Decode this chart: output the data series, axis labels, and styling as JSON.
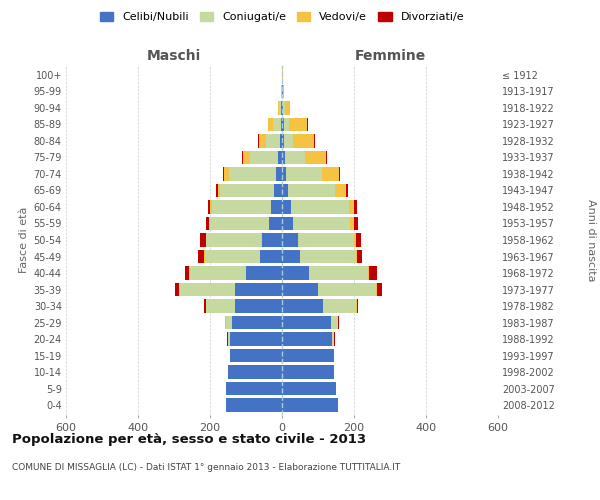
{
  "age_groups": [
    "0-4",
    "5-9",
    "10-14",
    "15-19",
    "20-24",
    "25-29",
    "30-34",
    "35-39",
    "40-44",
    "45-49",
    "50-54",
    "55-59",
    "60-64",
    "65-69",
    "70-74",
    "75-79",
    "80-84",
    "85-89",
    "90-94",
    "95-99",
    "100+"
  ],
  "birth_years": [
    "2008-2012",
    "2003-2007",
    "1998-2002",
    "1993-1997",
    "1988-1992",
    "1983-1987",
    "1978-1982",
    "1973-1977",
    "1968-1972",
    "1963-1967",
    "1958-1962",
    "1953-1957",
    "1948-1952",
    "1943-1947",
    "1938-1942",
    "1933-1937",
    "1928-1932",
    "1923-1927",
    "1918-1922",
    "1913-1917",
    "≤ 1912"
  ],
  "males": {
    "celibi": [
      155,
      155,
      150,
      145,
      145,
      140,
      130,
      130,
      100,
      60,
      55,
      35,
      30,
      22,
      18,
      10,
      5,
      4,
      2,
      1,
      1
    ],
    "coniugati": [
      0,
      0,
      0,
      0,
      5,
      15,
      80,
      155,
      155,
      155,
      155,
      165,
      165,
      150,
      130,
      80,
      40,
      20,
      5,
      1,
      0
    ],
    "vedovi": [
      0,
      0,
      0,
      0,
      1,
      2,
      2,
      2,
      2,
      2,
      2,
      4,
      4,
      5,
      12,
      18,
      20,
      15,
      3,
      1,
      0
    ],
    "divorziati": [
      0,
      0,
      0,
      0,
      1,
      2,
      4,
      10,
      12,
      15,
      15,
      6,
      6,
      5,
      5,
      2,
      2,
      0,
      0,
      0,
      0
    ]
  },
  "females": {
    "nubili": [
      155,
      150,
      145,
      145,
      140,
      135,
      115,
      100,
      75,
      50,
      45,
      30,
      25,
      18,
      12,
      8,
      5,
      5,
      3,
      2,
      1
    ],
    "coniugate": [
      0,
      0,
      0,
      0,
      5,
      20,
      90,
      160,
      165,
      155,
      155,
      160,
      160,
      130,
      100,
      55,
      25,
      15,
      5,
      1,
      0
    ],
    "vedove": [
      0,
      0,
      0,
      0,
      0,
      1,
      2,
      3,
      3,
      3,
      5,
      10,
      15,
      30,
      45,
      60,
      60,
      50,
      15,
      3,
      1
    ],
    "divorziate": [
      0,
      0,
      0,
      0,
      1,
      2,
      5,
      15,
      20,
      15,
      15,
      10,
      8,
      5,
      5,
      2,
      2,
      2,
      0,
      0,
      0
    ]
  },
  "colors": {
    "celibi": "#4472c4",
    "coniugati": "#c5d9a0",
    "vedovi": "#f5c242",
    "divorziati": "#c00000"
  },
  "title": "Popolazione per età, sesso e stato civile - 2013",
  "subtitle": "COMUNE DI MISSAGLIA (LC) - Dati ISTAT 1° gennaio 2013 - Elaborazione TUTTITALIA.IT",
  "xlabel_left": "Maschi",
  "xlabel_right": "Femmine",
  "ylabel_left": "Fasce di età",
  "ylabel_right": "Anni di nascita",
  "xlim": 600,
  "legend_labels": [
    "Celibi/Nubili",
    "Coniugati/e",
    "Vedovi/e",
    "Divorziati/e"
  ]
}
